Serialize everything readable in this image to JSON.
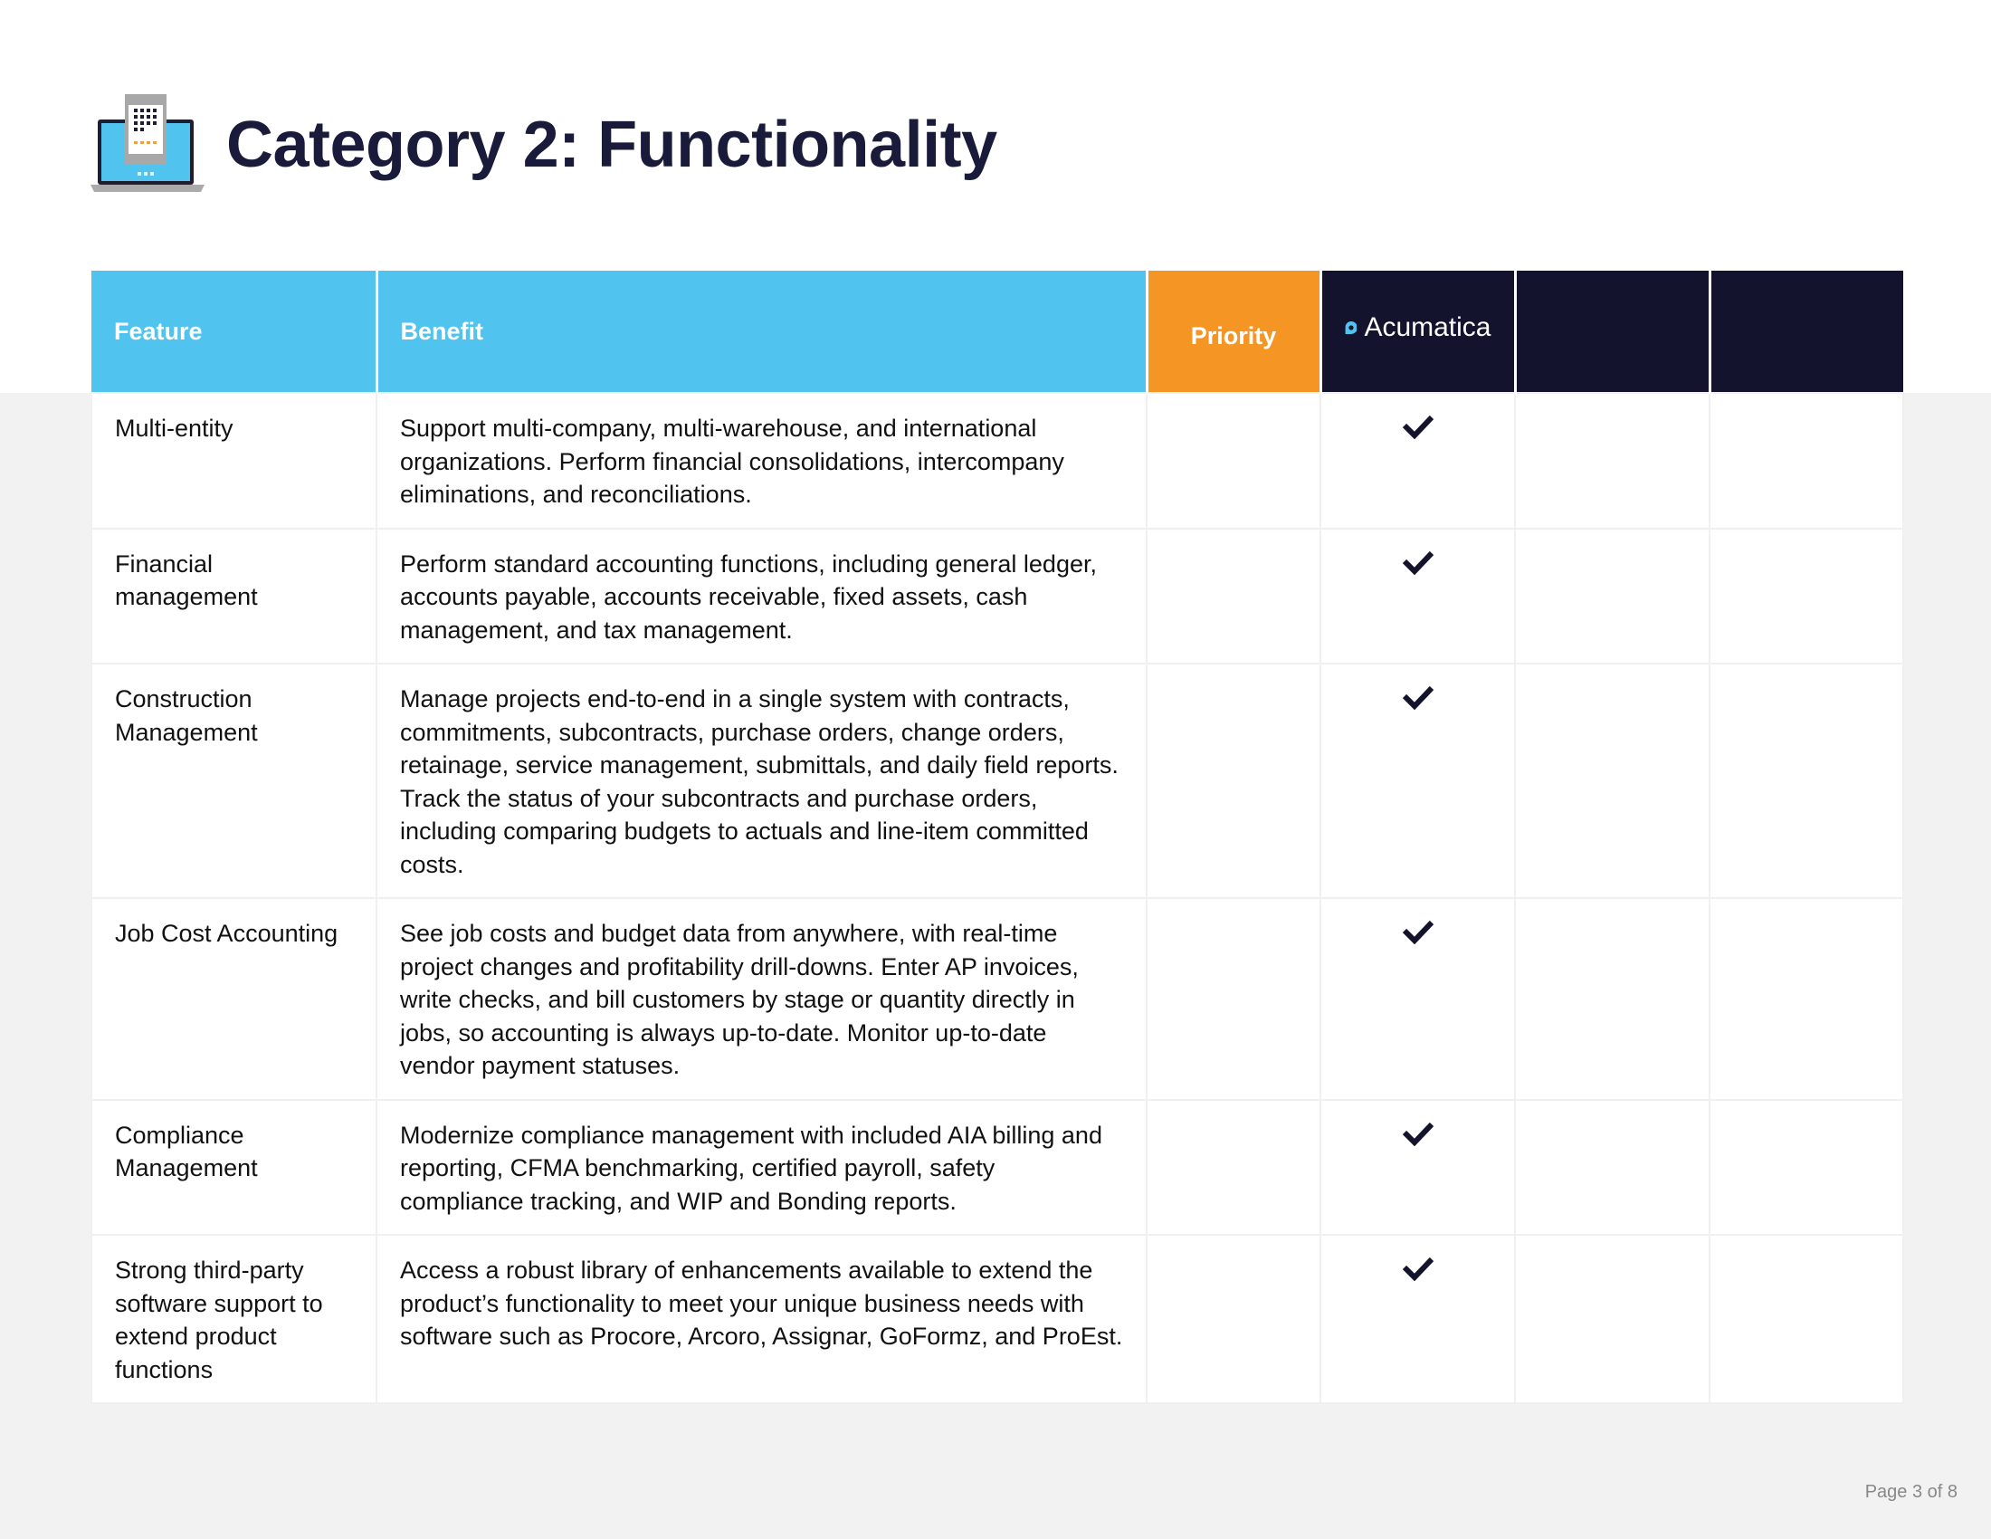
{
  "header": {
    "title": "Category 2: Functionality",
    "icon": "laptop-phone-icon"
  },
  "table": {
    "columns": {
      "feature": "Feature",
      "benefit": "Benefit",
      "priority": "Priority",
      "vendor1": "Acumatica",
      "vendor2": "",
      "vendor3": ""
    },
    "colors": {
      "blue": "#50c4ef",
      "orange": "#f59523",
      "navy": "#13132e"
    },
    "rows": [
      {
        "feature": "Multi-entity",
        "benefit": "Support multi-company, multi-warehouse, and international organizations. Perform financial consolidations, intercompany eliminations, and reconciliations.",
        "acumatica": true
      },
      {
        "feature": "Financial management",
        "benefit": "Perform standard accounting functions, including general ledger, accounts payable, accounts receivable, fixed assets, cash management, and tax management.",
        "acumatica": true
      },
      {
        "feature": "Construction Management",
        "benefit": "Manage projects end-to-end in a single system with contracts, commitments, subcontracts, purchase orders, change orders, retainage, service management, submittals, and daily field reports. Track the status of your subcontracts and purchase orders, including comparing budgets to actuals and line-item committed costs.",
        "acumatica": true
      },
      {
        "feature": "Job Cost Accounting",
        "benefit": "See job costs and budget data from anywhere, with real-time project changes and profitability drill-downs. Enter AP invoices, write checks, and bill customers by stage or quantity directly in jobs, so accounting is always up-to-date. Monitor up-to-date vendor payment statuses.",
        "acumatica": true
      },
      {
        "feature": "Compliance Management",
        "benefit": "Modernize compliance management with included AIA billing and reporting, CFMA benchmarking, certified payroll, safety compliance tracking, and WIP and Bonding reports.",
        "acumatica": true
      },
      {
        "feature": "Strong third-party software support to extend product functions",
        "benefit": "Access a robust library of enhancements available to extend the product’s functionality to meet your unique business needs with software such as Procore, Arcoro, Assignar, GoFormz, and ProEst.",
        "acumatica": true
      }
    ]
  },
  "footer": {
    "page": "Page 3 of 8"
  }
}
